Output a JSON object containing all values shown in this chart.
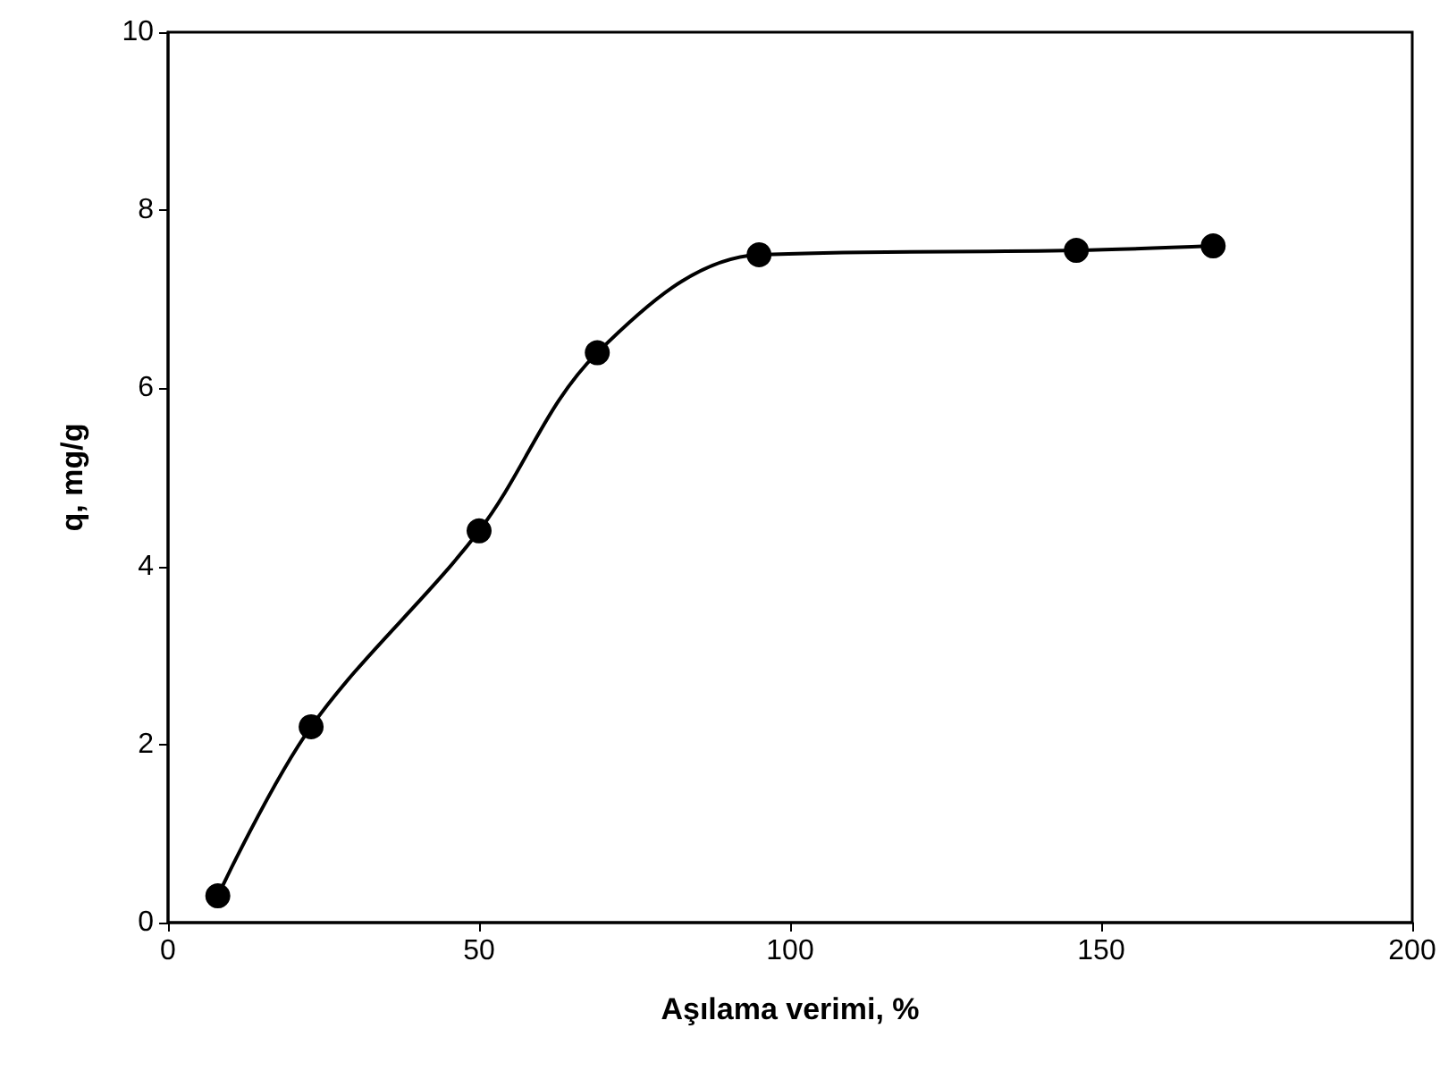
{
  "chart_data": {
    "type": "line",
    "xlabel": "Aşılama verimi, %",
    "ylabel": "q, mg/g",
    "x": [
      8,
      23,
      50,
      69,
      95,
      146,
      168
    ],
    "series": [
      {
        "color": "#000000",
        "values": [
          0.3,
          2.2,
          4.4,
          6.4,
          7.5,
          7.55,
          7.6
        ]
      }
    ],
    "xlim": [
      0,
      200
    ],
    "xticks": [
      0,
      50,
      100,
      150,
      200
    ],
    "ylim": [
      0,
      10
    ],
    "yticks": [
      0,
      2,
      4,
      6,
      8,
      10
    ],
    "marker": "circle",
    "line_style": "solid"
  }
}
